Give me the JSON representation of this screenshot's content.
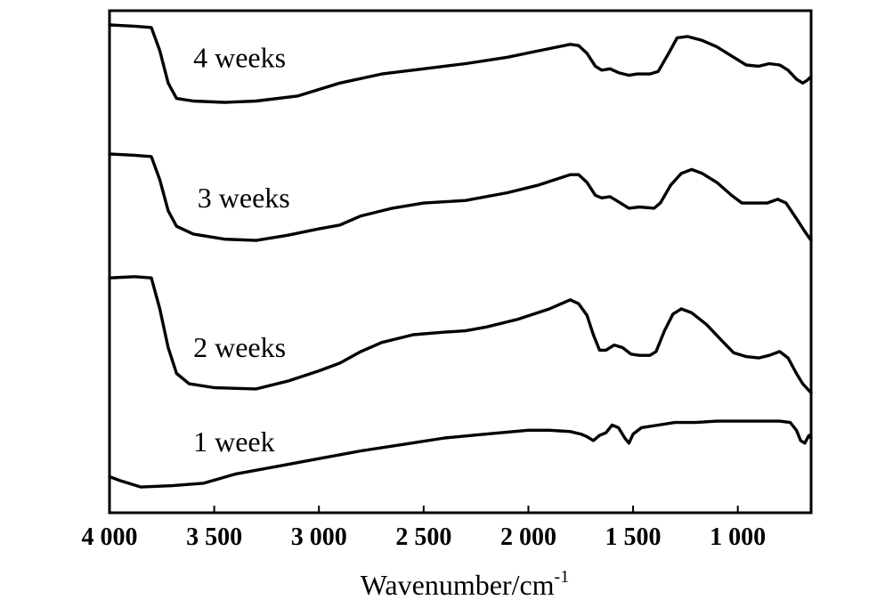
{
  "chart_data": {
    "type": "line",
    "xlabel": "Wavenumber/cm",
    "xlabel_sup": "-1",
    "ylabel": "",
    "xlim": [
      4000,
      650
    ],
    "x_reversed": true,
    "yaxis_ticks": false,
    "grid": false,
    "legend": "none",
    "x_ticks": [
      {
        "value": 4000,
        "label": "4 000"
      },
      {
        "value": 3500,
        "label": "3 500"
      },
      {
        "value": 3000,
        "label": "3 000"
      },
      {
        "value": 2500,
        "label": "2 500"
      },
      {
        "value": 2000,
        "label": "2 000"
      },
      {
        "value": 1500,
        "label": "1 500"
      },
      {
        "value": 1000,
        "label": "1 000"
      }
    ],
    "series": [
      {
        "name": "4 weeks",
        "label_x": 3600,
        "offset": 4.0,
        "points": [
          [
            4000,
            1.0
          ],
          [
            3880,
            0.99
          ],
          [
            3800,
            0.98
          ],
          [
            3760,
            0.8
          ],
          [
            3720,
            0.55
          ],
          [
            3680,
            0.43
          ],
          [
            3600,
            0.41
          ],
          [
            3450,
            0.4
          ],
          [
            3300,
            0.41
          ],
          [
            3100,
            0.45
          ],
          [
            2900,
            0.55
          ],
          [
            2700,
            0.62
          ],
          [
            2500,
            0.66
          ],
          [
            2300,
            0.7
          ],
          [
            2100,
            0.75
          ],
          [
            1950,
            0.8
          ],
          [
            1800,
            0.85
          ],
          [
            1760,
            0.84
          ],
          [
            1720,
            0.78
          ],
          [
            1680,
            0.68
          ],
          [
            1650,
            0.65
          ],
          [
            1610,
            0.66
          ],
          [
            1570,
            0.63
          ],
          [
            1520,
            0.61
          ],
          [
            1480,
            0.62
          ],
          [
            1420,
            0.62
          ],
          [
            1380,
            0.64
          ],
          [
            1330,
            0.78
          ],
          [
            1290,
            0.9
          ],
          [
            1240,
            0.91
          ],
          [
            1170,
            0.88
          ],
          [
            1100,
            0.83
          ],
          [
            1020,
            0.75
          ],
          [
            960,
            0.69
          ],
          [
            900,
            0.68
          ],
          [
            850,
            0.7
          ],
          [
            800,
            0.69
          ],
          [
            760,
            0.65
          ],
          [
            720,
            0.58
          ],
          [
            690,
            0.55
          ],
          [
            670,
            0.57
          ],
          [
            650,
            0.6
          ]
        ]
      },
      {
        "name": "3 weeks",
        "label_x": 3580,
        "offset": 3.0,
        "points": [
          [
            4000,
            1.0
          ],
          [
            3880,
            0.99
          ],
          [
            3800,
            0.98
          ],
          [
            3760,
            0.8
          ],
          [
            3720,
            0.56
          ],
          [
            3680,
            0.44
          ],
          [
            3600,
            0.38
          ],
          [
            3450,
            0.34
          ],
          [
            3300,
            0.33
          ],
          [
            3150,
            0.37
          ],
          [
            3000,
            0.42
          ],
          [
            2900,
            0.45
          ],
          [
            2800,
            0.52
          ],
          [
            2650,
            0.58
          ],
          [
            2500,
            0.62
          ],
          [
            2300,
            0.64
          ],
          [
            2100,
            0.7
          ],
          [
            1950,
            0.76
          ],
          [
            1800,
            0.84
          ],
          [
            1760,
            0.84
          ],
          [
            1720,
            0.78
          ],
          [
            1680,
            0.68
          ],
          [
            1650,
            0.66
          ],
          [
            1610,
            0.67
          ],
          [
            1560,
            0.62
          ],
          [
            1520,
            0.58
          ],
          [
            1470,
            0.59
          ],
          [
            1400,
            0.58
          ],
          [
            1370,
            0.62
          ],
          [
            1320,
            0.76
          ],
          [
            1270,
            0.85
          ],
          [
            1220,
            0.88
          ],
          [
            1170,
            0.85
          ],
          [
            1100,
            0.78
          ],
          [
            1030,
            0.68
          ],
          [
            980,
            0.62
          ],
          [
            920,
            0.62
          ],
          [
            860,
            0.62
          ],
          [
            810,
            0.65
          ],
          [
            770,
            0.62
          ],
          [
            720,
            0.5
          ],
          [
            680,
            0.4
          ],
          [
            650,
            0.33
          ]
        ]
      },
      {
        "name": "2 weeks",
        "label_x": 3600,
        "offset": 2.0,
        "points": [
          [
            4000,
            1.04
          ],
          [
            3880,
            1.05
          ],
          [
            3800,
            1.04
          ],
          [
            3760,
            0.8
          ],
          [
            3720,
            0.5
          ],
          [
            3680,
            0.3
          ],
          [
            3620,
            0.22
          ],
          [
            3500,
            0.19
          ],
          [
            3300,
            0.18
          ],
          [
            3150,
            0.24
          ],
          [
            3000,
            0.32
          ],
          [
            2900,
            0.38
          ],
          [
            2800,
            0.47
          ],
          [
            2700,
            0.54
          ],
          [
            2550,
            0.6
          ],
          [
            2400,
            0.62
          ],
          [
            2300,
            0.63
          ],
          [
            2200,
            0.66
          ],
          [
            2050,
            0.72
          ],
          [
            1900,
            0.8
          ],
          [
            1800,
            0.87
          ],
          [
            1760,
            0.84
          ],
          [
            1720,
            0.75
          ],
          [
            1690,
            0.6
          ],
          [
            1660,
            0.48
          ],
          [
            1630,
            0.48
          ],
          [
            1590,
            0.52
          ],
          [
            1550,
            0.5
          ],
          [
            1510,
            0.45
          ],
          [
            1470,
            0.44
          ],
          [
            1420,
            0.44
          ],
          [
            1390,
            0.47
          ],
          [
            1350,
            0.63
          ],
          [
            1310,
            0.76
          ],
          [
            1270,
            0.8
          ],
          [
            1220,
            0.77
          ],
          [
            1150,
            0.68
          ],
          [
            1080,
            0.56
          ],
          [
            1020,
            0.46
          ],
          [
            960,
            0.43
          ],
          [
            900,
            0.42
          ],
          [
            850,
            0.44
          ],
          [
            800,
            0.47
          ],
          [
            760,
            0.42
          ],
          [
            720,
            0.3
          ],
          [
            690,
            0.22
          ],
          [
            650,
            0.15
          ]
        ]
      },
      {
        "name": "1 week",
        "label_x": 3600,
        "offset": 1.0,
        "points": [
          [
            4000,
            0.5
          ],
          [
            3950,
            0.47
          ],
          [
            3850,
            0.42
          ],
          [
            3700,
            0.43
          ],
          [
            3550,
            0.45
          ],
          [
            3400,
            0.52
          ],
          [
            3200,
            0.58
          ],
          [
            3000,
            0.64
          ],
          [
            2800,
            0.7
          ],
          [
            2600,
            0.75
          ],
          [
            2400,
            0.8
          ],
          [
            2200,
            0.83
          ],
          [
            2000,
            0.86
          ],
          [
            1900,
            0.86
          ],
          [
            1800,
            0.85
          ],
          [
            1750,
            0.83
          ],
          [
            1720,
            0.81
          ],
          [
            1690,
            0.78
          ],
          [
            1660,
            0.82
          ],
          [
            1630,
            0.84
          ],
          [
            1600,
            0.9
          ],
          [
            1570,
            0.88
          ],
          [
            1540,
            0.8
          ],
          [
            1520,
            0.76
          ],
          [
            1500,
            0.83
          ],
          [
            1460,
            0.88
          ],
          [
            1380,
            0.9
          ],
          [
            1300,
            0.92
          ],
          [
            1200,
            0.92
          ],
          [
            1100,
            0.93
          ],
          [
            1000,
            0.93
          ],
          [
            900,
            0.93
          ],
          [
            800,
            0.93
          ],
          [
            750,
            0.92
          ],
          [
            720,
            0.86
          ],
          [
            700,
            0.78
          ],
          [
            680,
            0.76
          ],
          [
            660,
            0.82
          ],
          [
            650,
            0.8
          ]
        ]
      }
    ]
  }
}
